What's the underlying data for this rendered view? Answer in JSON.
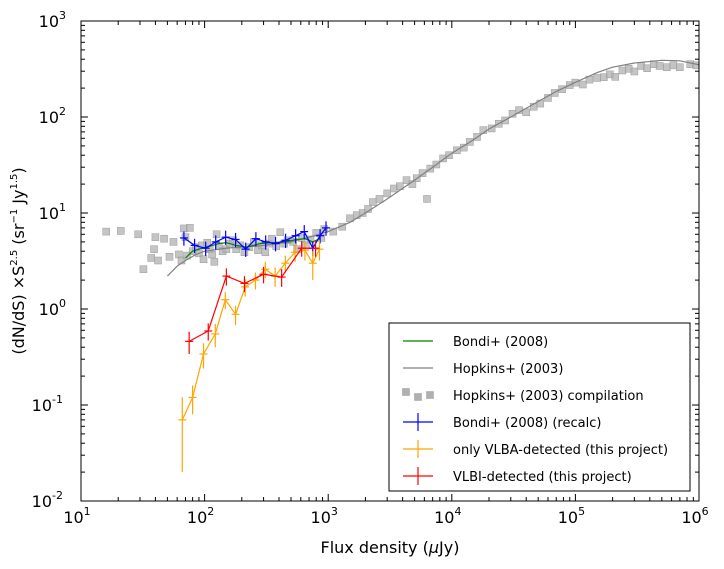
{
  "chart_data": {
    "type": "scatter",
    "xscale": "log",
    "yscale": "log",
    "xlim": [
      10,
      1000000
    ],
    "ylim": [
      0.01,
      1000
    ],
    "xlabel": "Flux density (μJy)",
    "ylabel": "(dN/dS) ×S^2.5 (sr^-1 Jy^1.5)",
    "x_ticks": [
      {
        "base": "10",
        "exp": "1",
        "value": 10
      },
      {
        "base": "10",
        "exp": "2",
        "value": 100
      },
      {
        "base": "10",
        "exp": "3",
        "value": 1000
      },
      {
        "base": "10",
        "exp": "4",
        "value": 10000
      },
      {
        "base": "10",
        "exp": "5",
        "value": 100000
      },
      {
        "base": "10",
        "exp": "6",
        "value": 1000000
      }
    ],
    "y_ticks": [
      {
        "base": "10",
        "exp": "-2",
        "value": 0.01
      },
      {
        "base": "10",
        "exp": "-1",
        "value": 0.1
      },
      {
        "base": "10",
        "exp": "0",
        "value": 1
      },
      {
        "base": "10",
        "exp": "1",
        "value": 10
      },
      {
        "base": "10",
        "exp": "2",
        "value": 100
      },
      {
        "base": "10",
        "exp": "3",
        "value": 1000
      }
    ],
    "legend": [
      {
        "label": "Bondi+ (2008)",
        "color": "#008000",
        "style": "line"
      },
      {
        "label": "Hopkins+ (2003)",
        "color": "#808080",
        "style": "line"
      },
      {
        "label": "Hopkins+ (2003) compilation",
        "color": "#b0b0b0",
        "style": "squares"
      },
      {
        "label": "Bondi+ (2008) (recalc)",
        "color": "#0000ff",
        "style": "errorbar"
      },
      {
        "label": "only VLBA-detected (this project)",
        "color": "#ffa500",
        "style": "errorbar"
      },
      {
        "label": "VLBI-detected (this project)",
        "color": "#ff0000",
        "style": "errorbar"
      }
    ],
    "series": [
      {
        "name": "Hopkins+ (2003) compilation",
        "kind": "squares",
        "color": "#b0b0b0",
        "points": [
          [
            16,
            6.4
          ],
          [
            21,
            6.5
          ],
          [
            29,
            6.0
          ],
          [
            32,
            2.6
          ],
          [
            37,
            3.4
          ],
          [
            39,
            4.2
          ],
          [
            40,
            5.6
          ],
          [
            42,
            3.2
          ],
          [
            47,
            5.4
          ],
          [
            52,
            3.5
          ],
          [
            56,
            5.0
          ],
          [
            62,
            3.7
          ],
          [
            65,
            3.2
          ],
          [
            68,
            6.9
          ],
          [
            70,
            5.6
          ],
          [
            72,
            3.6
          ],
          [
            76,
            7.0
          ],
          [
            80,
            4.0
          ],
          [
            85,
            4.4
          ],
          [
            90,
            3.8
          ],
          [
            95,
            4.6
          ],
          [
            98,
            3.3
          ],
          [
            105,
            4.9
          ],
          [
            110,
            4.2
          ],
          [
            115,
            3.7
          ],
          [
            120,
            3.1
          ],
          [
            125,
            6.0
          ],
          [
            130,
            4.5
          ],
          [
            140,
            4.0
          ],
          [
            150,
            4.2
          ],
          [
            160,
            4.8
          ],
          [
            170,
            5.2
          ],
          [
            180,
            4.2
          ],
          [
            195,
            4.6
          ],
          [
            210,
            3.9
          ],
          [
            230,
            4.4
          ],
          [
            250,
            5.0
          ],
          [
            270,
            4.1
          ],
          [
            290,
            4.6
          ],
          [
            310,
            3.9
          ],
          [
            330,
            4.8
          ],
          [
            350,
            5.4
          ],
          [
            380,
            4.5
          ],
          [
            410,
            6.3
          ],
          [
            440,
            4.8
          ],
          [
            470,
            5.2
          ],
          [
            520,
            5.0
          ],
          [
            560,
            4.2
          ],
          [
            610,
            5.5
          ],
          [
            660,
            4.6
          ],
          [
            720,
            5.3
          ],
          [
            800,
            6.2
          ],
          [
            880,
            5.5
          ],
          [
            930,
            6.8
          ],
          [
            1100,
            6.4
          ],
          [
            1300,
            7.2
          ],
          [
            1500,
            8.8
          ],
          [
            1700,
            9.5
          ],
          [
            1900,
            10
          ],
          [
            2100,
            11
          ],
          [
            2300,
            13
          ],
          [
            2600,
            14
          ],
          [
            3000,
            16
          ],
          [
            3400,
            18
          ],
          [
            3800,
            19
          ],
          [
            4300,
            22
          ],
          [
            4800,
            20
          ],
          [
            5200,
            23
          ],
          [
            5800,
            26
          ],
          [
            6300,
            14
          ],
          [
            6700,
            29
          ],
          [
            7500,
            32
          ],
          [
            8500,
            37
          ],
          [
            9500,
            40
          ],
          [
            11000,
            45
          ],
          [
            12500,
            48
          ],
          [
            14000,
            55
          ],
          [
            16000,
            62
          ],
          [
            18000,
            73
          ],
          [
            21000,
            76
          ],
          [
            24000,
            85
          ],
          [
            27000,
            92
          ],
          [
            31000,
            108
          ],
          [
            35000,
            118
          ],
          [
            40000,
            112
          ],
          [
            46000,
            128
          ],
          [
            52000,
            138
          ],
          [
            60000,
            158
          ],
          [
            68000,
            178
          ],
          [
            78000,
            195
          ],
          [
            90000,
            215
          ],
          [
            100000,
            228
          ],
          [
            115000,
            218
          ],
          [
            130000,
            245
          ],
          [
            150000,
            255
          ],
          [
            170000,
            260
          ],
          [
            190000,
            278
          ],
          [
            210000,
            262
          ],
          [
            240000,
            305
          ],
          [
            270000,
            318
          ],
          [
            300000,
            298
          ],
          [
            340000,
            340
          ],
          [
            380000,
            322
          ],
          [
            430000,
            355
          ],
          [
            480000,
            340
          ],
          [
            550000,
            330
          ],
          [
            620000,
            345
          ],
          [
            700000,
            330
          ],
          [
            850000,
            355
          ],
          [
            950000,
            345
          ]
        ]
      },
      {
        "name": "Hopkins+ (2003)",
        "kind": "line",
        "color": "#808080",
        "points": [
          [
            50,
            2.2
          ],
          [
            60,
            2.8
          ],
          [
            70,
            3.2
          ],
          [
            85,
            3.7
          ],
          [
            100,
            4.0
          ],
          [
            150,
            4.3
          ],
          [
            200,
            4.4
          ],
          [
            300,
            4.6
          ],
          [
            500,
            5.0
          ],
          [
            700,
            5.6
          ],
          [
            1000,
            6.4
          ],
          [
            1500,
            8.0
          ],
          [
            2000,
            10
          ],
          [
            3000,
            14
          ],
          [
            5000,
            22
          ],
          [
            7000,
            30
          ],
          [
            10000,
            42
          ],
          [
            15000,
            58
          ],
          [
            20000,
            75
          ],
          [
            30000,
            100
          ],
          [
            50000,
            145
          ],
          [
            70000,
            185
          ],
          [
            100000,
            230
          ],
          [
            150000,
            290
          ],
          [
            200000,
            330
          ],
          [
            300000,
            365
          ],
          [
            500000,
            390
          ],
          [
            700000,
            385
          ],
          [
            1000000,
            350
          ]
        ]
      },
      {
        "name": "Bondi+ (2008)",
        "kind": "line",
        "color": "#008000",
        "points": [
          [
            70,
            3.4
          ],
          [
            80,
            4.0
          ],
          [
            95,
            4.3
          ],
          [
            110,
            4.5
          ],
          [
            130,
            4.8
          ],
          [
            150,
            4.9
          ],
          [
            180,
            4.6
          ],
          [
            220,
            4.4
          ],
          [
            280,
            4.8
          ],
          [
            350,
            4.9
          ],
          [
            450,
            5.0
          ],
          [
            550,
            5.3
          ],
          [
            650,
            5.4
          ],
          [
            750,
            5.0
          ],
          [
            850,
            5.4
          ]
        ]
      },
      {
        "name": "Bondi+ (2008) (recalc)",
        "kind": "errorbar",
        "color": "#0000ff",
        "points": [
          [
            68,
            5.5
          ],
          [
            83,
            4.6
          ],
          [
            102,
            4.3
          ],
          [
            123,
            5.0
          ],
          [
            148,
            5.6
          ],
          [
            178,
            5.3
          ],
          [
            215,
            4.2
          ],
          [
            260,
            5.4
          ],
          [
            312,
            5.0
          ],
          [
            375,
            4.8
          ],
          [
            452,
            5.2
          ],
          [
            545,
            5.8
          ],
          [
            640,
            6.4
          ],
          [
            750,
            4.3
          ],
          [
            860,
            5.8
          ],
          [
            960,
            7.0
          ]
        ],
        "yerr_frac": 0.17
      },
      {
        "name": "only VLBA-detected (this project)",
        "kind": "errorbar",
        "color": "#ffa500",
        "points": [
          [
            66,
            0.07
          ],
          [
            80,
            0.12
          ],
          [
            98,
            0.34
          ],
          [
            122,
            0.55
          ],
          [
            147,
            1.25
          ],
          [
            178,
            0.88
          ],
          [
            213,
            1.7
          ],
          [
            258,
            2.0
          ],
          [
            310,
            2.6
          ],
          [
            372,
            2.2
          ],
          [
            450,
            3.0
          ],
          [
            540,
            3.9
          ],
          [
            648,
            4.1
          ],
          [
            750,
            3.0
          ],
          [
            850,
            4.2
          ]
        ],
        "yerr": [
          [
            0.05,
            0.05
          ],
          [
            0.04,
            0.04
          ],
          [
            0.1,
            0.1
          ],
          [
            0.15,
            0.15
          ],
          [
            0.25,
            0.25
          ],
          [
            0.2,
            0.2
          ],
          [
            0.35,
            0.35
          ],
          [
            0.4,
            0.4
          ],
          [
            0.5,
            0.5
          ],
          [
            0.5,
            0.5
          ],
          [
            0.6,
            0.6
          ],
          [
            0.8,
            0.8
          ],
          [
            0.9,
            0.9
          ],
          [
            1.0,
            1.0
          ],
          [
            1.0,
            1.0
          ]
        ]
      },
      {
        "name": "VLBI-detected (this project)",
        "kind": "errorbar",
        "color": "#ff0000",
        "points": [
          [
            75,
            0.46
          ],
          [
            107,
            0.59
          ],
          [
            150,
            2.2
          ],
          [
            210,
            1.85
          ],
          [
            300,
            2.3
          ],
          [
            420,
            2.15
          ],
          [
            610,
            4.3
          ],
          [
            790,
            4.3
          ]
        ],
        "yerr": [
          [
            0.12,
            0.12
          ],
          [
            0.12,
            0.12
          ],
          [
            0.45,
            0.45
          ],
          [
            0.35,
            0.35
          ],
          [
            0.45,
            0.45
          ],
          [
            0.45,
            0.45
          ],
          [
            0.8,
            0.8
          ],
          [
            0.8,
            0.8
          ]
        ]
      }
    ]
  }
}
